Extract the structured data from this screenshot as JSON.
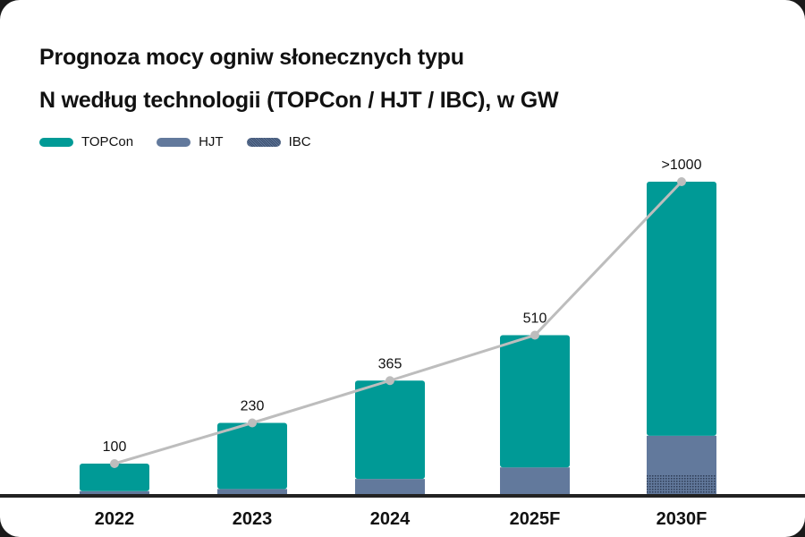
{
  "chart_data": {
    "type": "bar",
    "stacked": true,
    "title_lines": [
      "Prognoza mocy ogniw słonecznych typu",
      "N według technologii (TOPCon / HJT / IBC), w GW"
    ],
    "categories": [
      "2022",
      "2023",
      "2024",
      "2025F",
      "2030F"
    ],
    "series": [
      {
        "name": "TOPCon",
        "color": "#009a96",
        "values": [
          88,
          211,
          314,
          422,
          811
        ]
      },
      {
        "name": "HJT",
        "color": "#62799c",
        "values": [
          9,
          16,
          48,
          80,
          123
        ]
      },
      {
        "name": "IBC",
        "color": "#3c4f6e",
        "pattern": "dotted",
        "values": [
          3,
          3,
          3,
          8,
          66
        ]
      }
    ],
    "totals": [
      100,
      230,
      365,
      510,
      1000
    ],
    "total_labels": [
      "100",
      "230",
      "365",
      "510",
      ">1000"
    ],
    "line": {
      "color": "#bdbdbd",
      "values": [
        100,
        230,
        365,
        510,
        1000
      ]
    },
    "ylim": [
      0,
      1000
    ],
    "grid": false,
    "yaxis_visible": false,
    "legend_position": "top-left"
  }
}
